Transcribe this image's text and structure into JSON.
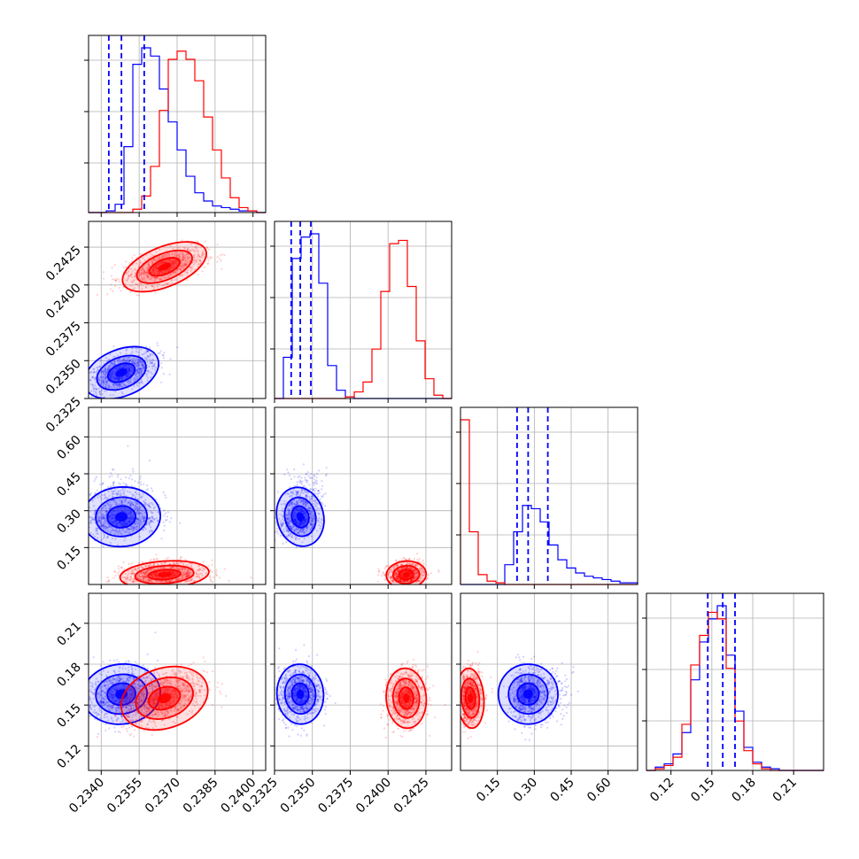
{
  "chart_data": {
    "type": "corner",
    "colors": {
      "series_a": "#0000ff",
      "series_b": "#ff0000"
    },
    "grid": true,
    "series": [
      {
        "color": "blue",
        "medians": [
          0.2348,
          0.2342,
          0.275,
          0.158
        ],
        "q16": [
          0.2343,
          0.2336,
          0.23,
          0.147
        ],
        "q84": [
          0.2357,
          0.2349,
          0.355,
          0.167
        ],
        "spread": [
          0.0007,
          0.0007,
          0.055,
          0.01
        ]
      },
      {
        "color": "red",
        "medians": [
          0.2365,
          0.2412,
          0.04,
          0.155
        ],
        "spread": [
          0.0008,
          0.0006,
          0.025,
          0.01
        ]
      }
    ],
    "variables": [
      {
        "range": [
          0.2335,
          0.2405
        ],
        "ticks": [
          0.234,
          0.2355,
          0.237,
          0.2385,
          0.24
        ],
        "tick_labels": [
          "0.2340",
          "0.2355",
          "0.2370",
          "0.2385",
          "0.2400"
        ]
      },
      {
        "range": [
          0.2325,
          0.2442
        ],
        "ticks": [
          0.2325,
          0.235,
          0.2375,
          0.24,
          0.2425
        ],
        "tick_labels": [
          "0.2325",
          "0.2350",
          "0.2375",
          "0.2400",
          "0.2425"
        ]
      },
      {
        "range": [
          0.0,
          0.72
        ],
        "ticks": [
          0.15,
          0.3,
          0.45,
          0.6
        ],
        "tick_labels": [
          "0.15",
          "0.30",
          "0.45",
          "0.60"
        ]
      },
      {
        "range": [
          0.102,
          0.232
        ],
        "ticks": [
          0.12,
          0.15,
          0.18,
          0.21
        ],
        "tick_labels": [
          "0.12",
          "0.15",
          "0.18",
          "0.21"
        ]
      }
    ],
    "histograms": [
      {
        "blue": [
          0.0,
          0.0,
          0.01,
          0.05,
          0.4,
          0.9,
          1.0,
          0.95,
          0.75,
          0.55,
          0.38,
          0.22,
          0.12,
          0.07,
          0.04,
          0.03,
          0.02,
          0.01,
          0.01,
          0.0
        ],
        "red": [
          0.0,
          0.0,
          0.0,
          0.0,
          0.0,
          0.02,
          0.1,
          0.28,
          0.62,
          0.93,
          0.98,
          0.93,
          0.8,
          0.58,
          0.38,
          0.21,
          0.09,
          0.03,
          0.01,
          0.0
        ]
      },
      {
        "blue": [
          0.0,
          0.25,
          0.85,
          0.98,
          1.0,
          0.7,
          0.2,
          0.05,
          0.01,
          0.0,
          0.0,
          0.0,
          0.0,
          0.0,
          0.0,
          0.0,
          0.0,
          0.0,
          0.0,
          0.0
        ],
        "red": [
          0.0,
          0.0,
          0.0,
          0.0,
          0.0,
          0.0,
          0.0,
          0.0,
          0.01,
          0.04,
          0.1,
          0.3,
          0.65,
          0.94,
          0.96,
          0.68,
          0.35,
          0.12,
          0.02,
          0.0
        ]
      },
      {
        "blue": [
          0.0,
          0.0,
          0.0,
          0.0,
          0.0,
          0.12,
          0.32,
          0.48,
          0.46,
          0.38,
          0.24,
          0.15,
          0.1,
          0.07,
          0.05,
          0.04,
          0.03,
          0.02,
          0.01,
          0.01
        ],
        "red": [
          1.0,
          0.32,
          0.06,
          0.02,
          0.01,
          0.0,
          0.0,
          0.0,
          0.0,
          0.0,
          0.0,
          0.0,
          0.0,
          0.0,
          0.0,
          0.0,
          0.0,
          0.0,
          0.0,
          0.0
        ]
      },
      {
        "blue": [
          0.0,
          0.02,
          0.04,
          0.1,
          0.23,
          0.55,
          0.78,
          0.92,
          1.0,
          0.7,
          0.36,
          0.14,
          0.05,
          0.02,
          0.01,
          0.0,
          0.0,
          0.0,
          0.0,
          0.0
        ],
        "red": [
          0.0,
          0.01,
          0.03,
          0.08,
          0.28,
          0.64,
          0.82,
          0.96,
          0.92,
          0.62,
          0.3,
          0.12,
          0.04,
          0.01,
          0.0,
          0.0,
          0.0,
          0.0,
          0.0,
          0.0
        ]
      }
    ]
  }
}
